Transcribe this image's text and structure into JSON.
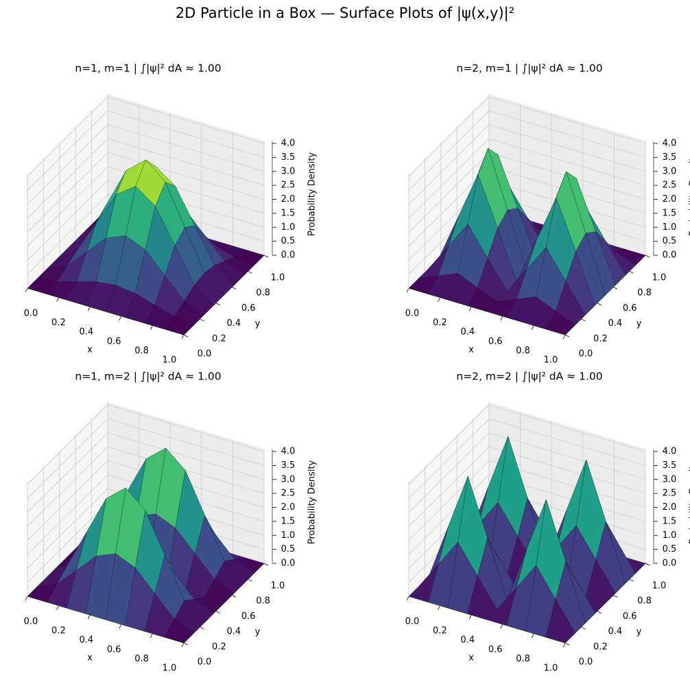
{
  "title": "2D Particle in a Box — Surface Plots of |ψ(x,y)|²",
  "chart_data": [
    {
      "type": "surface",
      "title": "n=1, m=1 | ∫|ψ|² dA ≈ 1.00",
      "colormap": "viridis",
      "xlabel": "x",
      "ylabel": "y",
      "zlabel": "Probability Density",
      "x": [
        0,
        0.125,
        0.25,
        0.375,
        0.5,
        0.625,
        0.75,
        0.875,
        1
      ],
      "y": [
        0,
        0.125,
        0.25,
        0.375,
        0.5,
        0.625,
        0.75,
        0.875,
        1
      ],
      "z": [
        [
          0,
          0,
          0,
          0,
          0,
          0,
          0,
          0,
          0
        ],
        [
          0,
          0.09,
          0.29,
          0.5,
          0.59,
          0.5,
          0.29,
          0.09,
          0
        ],
        [
          0,
          0.29,
          1,
          1.71,
          2,
          1.71,
          1,
          0.29,
          0
        ],
        [
          0,
          0.5,
          1.71,
          2.91,
          3.41,
          2.91,
          1.71,
          0.5,
          0
        ],
        [
          0,
          0.59,
          2,
          3.41,
          4,
          3.41,
          2,
          0.59,
          0
        ],
        [
          0,
          0.5,
          1.71,
          2.91,
          3.41,
          2.91,
          1.71,
          0.5,
          0
        ],
        [
          0,
          0.29,
          1,
          1.71,
          2,
          1.71,
          1,
          0.29,
          0
        ],
        [
          0,
          0.09,
          0.29,
          0.5,
          0.59,
          0.5,
          0.29,
          0.09,
          0
        ],
        [
          0,
          0,
          0,
          0,
          0,
          0,
          0,
          0,
          0
        ]
      ],
      "xlim": [
        0,
        1
      ],
      "ylim": [
        0,
        1
      ],
      "zlim": [
        0,
        4
      ],
      "xticks": [
        {
          "value": 0,
          "label": "0.0"
        },
        0.2,
        0.4,
        0.6,
        0.8,
        {
          "value": 1,
          "label": "1.0"
        }
      ],
      "yticks": [
        {
          "value": 0,
          "label": "0.0"
        },
        0.2,
        0.4,
        0.6,
        0.8,
        {
          "value": 1,
          "label": "1.0"
        }
      ],
      "zticks": [
        {
          "value": 0,
          "label": "0.0"
        },
        0.5,
        {
          "value": 1,
          "label": "1.0"
        },
        1.5,
        {
          "value": 2,
          "label": "2.0"
        },
        2.5,
        {
          "value": 3,
          "label": "3.0"
        },
        3.5,
        {
          "value": 4,
          "label": "4.0"
        }
      ],
      "grid": true
    },
    {
      "type": "surface",
      "title": "n=2, m=1 | ∫|ψ|² dA ≈ 1.00",
      "colormap": "viridis",
      "xlabel": "x",
      "ylabel": "y",
      "zlabel": "Probability Density",
      "x": [
        0,
        0.125,
        0.25,
        0.375,
        0.5,
        0.625,
        0.75,
        0.875,
        1
      ],
      "y": [
        0,
        0.125,
        0.25,
        0.375,
        0.5,
        0.625,
        0.75,
        0.875,
        1
      ],
      "z": [
        [
          0,
          0,
          0,
          0,
          0,
          0,
          0,
          0,
          0
        ],
        [
          0,
          0.29,
          0.59,
          0.29,
          0,
          0.29,
          0.59,
          0.29,
          0
        ],
        [
          0,
          1,
          2,
          1,
          0,
          1,
          2,
          1,
          0
        ],
        [
          0,
          1.71,
          3.41,
          1.71,
          0,
          1.71,
          3.41,
          1.71,
          0
        ],
        [
          0,
          2,
          4,
          2,
          0,
          2,
          4,
          2,
          0
        ],
        [
          0,
          1.71,
          3.41,
          1.71,
          0,
          1.71,
          3.41,
          1.71,
          0
        ],
        [
          0,
          1,
          2,
          1,
          0,
          1,
          2,
          1,
          0
        ],
        [
          0,
          0.29,
          0.59,
          0.29,
          0,
          0.29,
          0.59,
          0.29,
          0
        ],
        [
          0,
          0,
          0,
          0,
          0,
          0,
          0,
          0,
          0
        ]
      ],
      "xlim": [
        0,
        1
      ],
      "ylim": [
        0,
        1
      ],
      "zlim": [
        0,
        4
      ],
      "xticks": [
        {
          "value": 0,
          "label": "0.0"
        },
        0.2,
        0.4,
        0.6,
        0.8,
        {
          "value": 1,
          "label": "1.0"
        }
      ],
      "yticks": [
        {
          "value": 0,
          "label": "0.0"
        },
        0.2,
        0.4,
        0.6,
        0.8,
        {
          "value": 1,
          "label": "1.0"
        }
      ],
      "zticks": [
        {
          "value": 0,
          "label": "0.0"
        },
        0.5,
        {
          "value": 1,
          "label": "1.0"
        },
        1.5,
        {
          "value": 2,
          "label": "2.0"
        },
        2.5,
        {
          "value": 3,
          "label": "3.0"
        },
        3.5,
        {
          "value": 4,
          "label": "4.0"
        }
      ],
      "grid": true
    },
    {
      "type": "surface",
      "title": "n=1, m=2 | ∫|ψ|² dA ≈ 1.00",
      "colormap": "viridis",
      "xlabel": "x",
      "ylabel": "y",
      "zlabel": "Probability Density",
      "x": [
        0,
        0.125,
        0.25,
        0.375,
        0.5,
        0.625,
        0.75,
        0.875,
        1
      ],
      "y": [
        0,
        0.125,
        0.25,
        0.375,
        0.5,
        0.625,
        0.75,
        0.875,
        1
      ],
      "z": [
        [
          0,
          0,
          0,
          0,
          0,
          0,
          0,
          0,
          0
        ],
        [
          0,
          0.29,
          1,
          1.71,
          2,
          1.71,
          1,
          0.29,
          0
        ],
        [
          0,
          0.59,
          2,
          3.41,
          4,
          3.41,
          2,
          0.59,
          0
        ],
        [
          0,
          0.29,
          1,
          1.71,
          2,
          1.71,
          1,
          0.29,
          0
        ],
        [
          0,
          0,
          0,
          0,
          0,
          0,
          0,
          0,
          0
        ],
        [
          0,
          0.29,
          1,
          1.71,
          2,
          1.71,
          1,
          0.29,
          0
        ],
        [
          0,
          0.59,
          2,
          3.41,
          4,
          3.41,
          2,
          0.59,
          0
        ],
        [
          0,
          0.29,
          1,
          1.71,
          2,
          1.71,
          1,
          0.29,
          0
        ],
        [
          0,
          0,
          0,
          0,
          0,
          0,
          0,
          0,
          0
        ]
      ],
      "xlim": [
        0,
        1
      ],
      "ylim": [
        0,
        1
      ],
      "zlim": [
        0,
        4
      ],
      "xticks": [
        {
          "value": 0,
          "label": "0.0"
        },
        0.2,
        0.4,
        0.6,
        0.8,
        {
          "value": 1,
          "label": "1.0"
        }
      ],
      "yticks": [
        {
          "value": 0,
          "label": "0.0"
        },
        0.2,
        0.4,
        0.6,
        0.8,
        {
          "value": 1,
          "label": "1.0"
        }
      ],
      "zticks": [
        {
          "value": 0,
          "label": "0.0"
        },
        0.5,
        {
          "value": 1,
          "label": "1.0"
        },
        1.5,
        {
          "value": 2,
          "label": "2.0"
        },
        2.5,
        {
          "value": 3,
          "label": "3.0"
        },
        3.5,
        {
          "value": 4,
          "label": "4.0"
        }
      ],
      "grid": true
    },
    {
      "type": "surface",
      "title": "n=2, m=2 | ∫|ψ|² dA ≈ 1.00",
      "colormap": "viridis",
      "xlabel": "x",
      "ylabel": "y",
      "zlabel": "Probability Density",
      "x": [
        0,
        0.125,
        0.25,
        0.375,
        0.5,
        0.625,
        0.75,
        0.875,
        1
      ],
      "y": [
        0,
        0.125,
        0.25,
        0.375,
        0.5,
        0.625,
        0.75,
        0.875,
        1
      ],
      "z": [
        [
          0,
          0,
          0,
          0,
          0,
          0,
          0,
          0,
          0
        ],
        [
          0,
          1,
          2,
          1,
          0,
          1,
          2,
          1,
          0
        ],
        [
          0,
          2,
          4,
          2,
          0,
          2,
          4,
          2,
          0
        ],
        [
          0,
          1,
          2,
          1,
          0,
          1,
          2,
          1,
          0
        ],
        [
          0,
          0,
          0,
          0,
          0,
          0,
          0,
          0,
          0
        ],
        [
          0,
          1,
          2,
          1,
          0,
          1,
          2,
          1,
          0
        ],
        [
          0,
          2,
          4,
          2,
          0,
          2,
          4,
          2,
          0
        ],
        [
          0,
          1,
          2,
          1,
          0,
          1,
          2,
          1,
          0
        ],
        [
          0,
          0,
          0,
          0,
          0,
          0,
          0,
          0,
          0
        ]
      ],
      "xlim": [
        0,
        1
      ],
      "ylim": [
        0,
        1
      ],
      "zlim": [
        0,
        4
      ],
      "xticks": [
        {
          "value": 0,
          "label": "0.0"
        },
        0.2,
        0.4,
        0.6,
        0.8,
        {
          "value": 1,
          "label": "1.0"
        }
      ],
      "yticks": [
        {
          "value": 0,
          "label": "0.0"
        },
        0.2,
        0.4,
        0.6,
        0.8,
        {
          "value": 1,
          "label": "1.0"
        }
      ],
      "zticks": [
        {
          "value": 0,
          "label": "0.0"
        },
        0.5,
        {
          "value": 1,
          "label": "1.0"
        },
        1.5,
        {
          "value": 2,
          "label": "2.0"
        },
        2.5,
        {
          "value": 3,
          "label": "3.0"
        },
        3.5,
        {
          "value": 4,
          "label": "4.0"
        }
      ],
      "grid": true
    }
  ]
}
